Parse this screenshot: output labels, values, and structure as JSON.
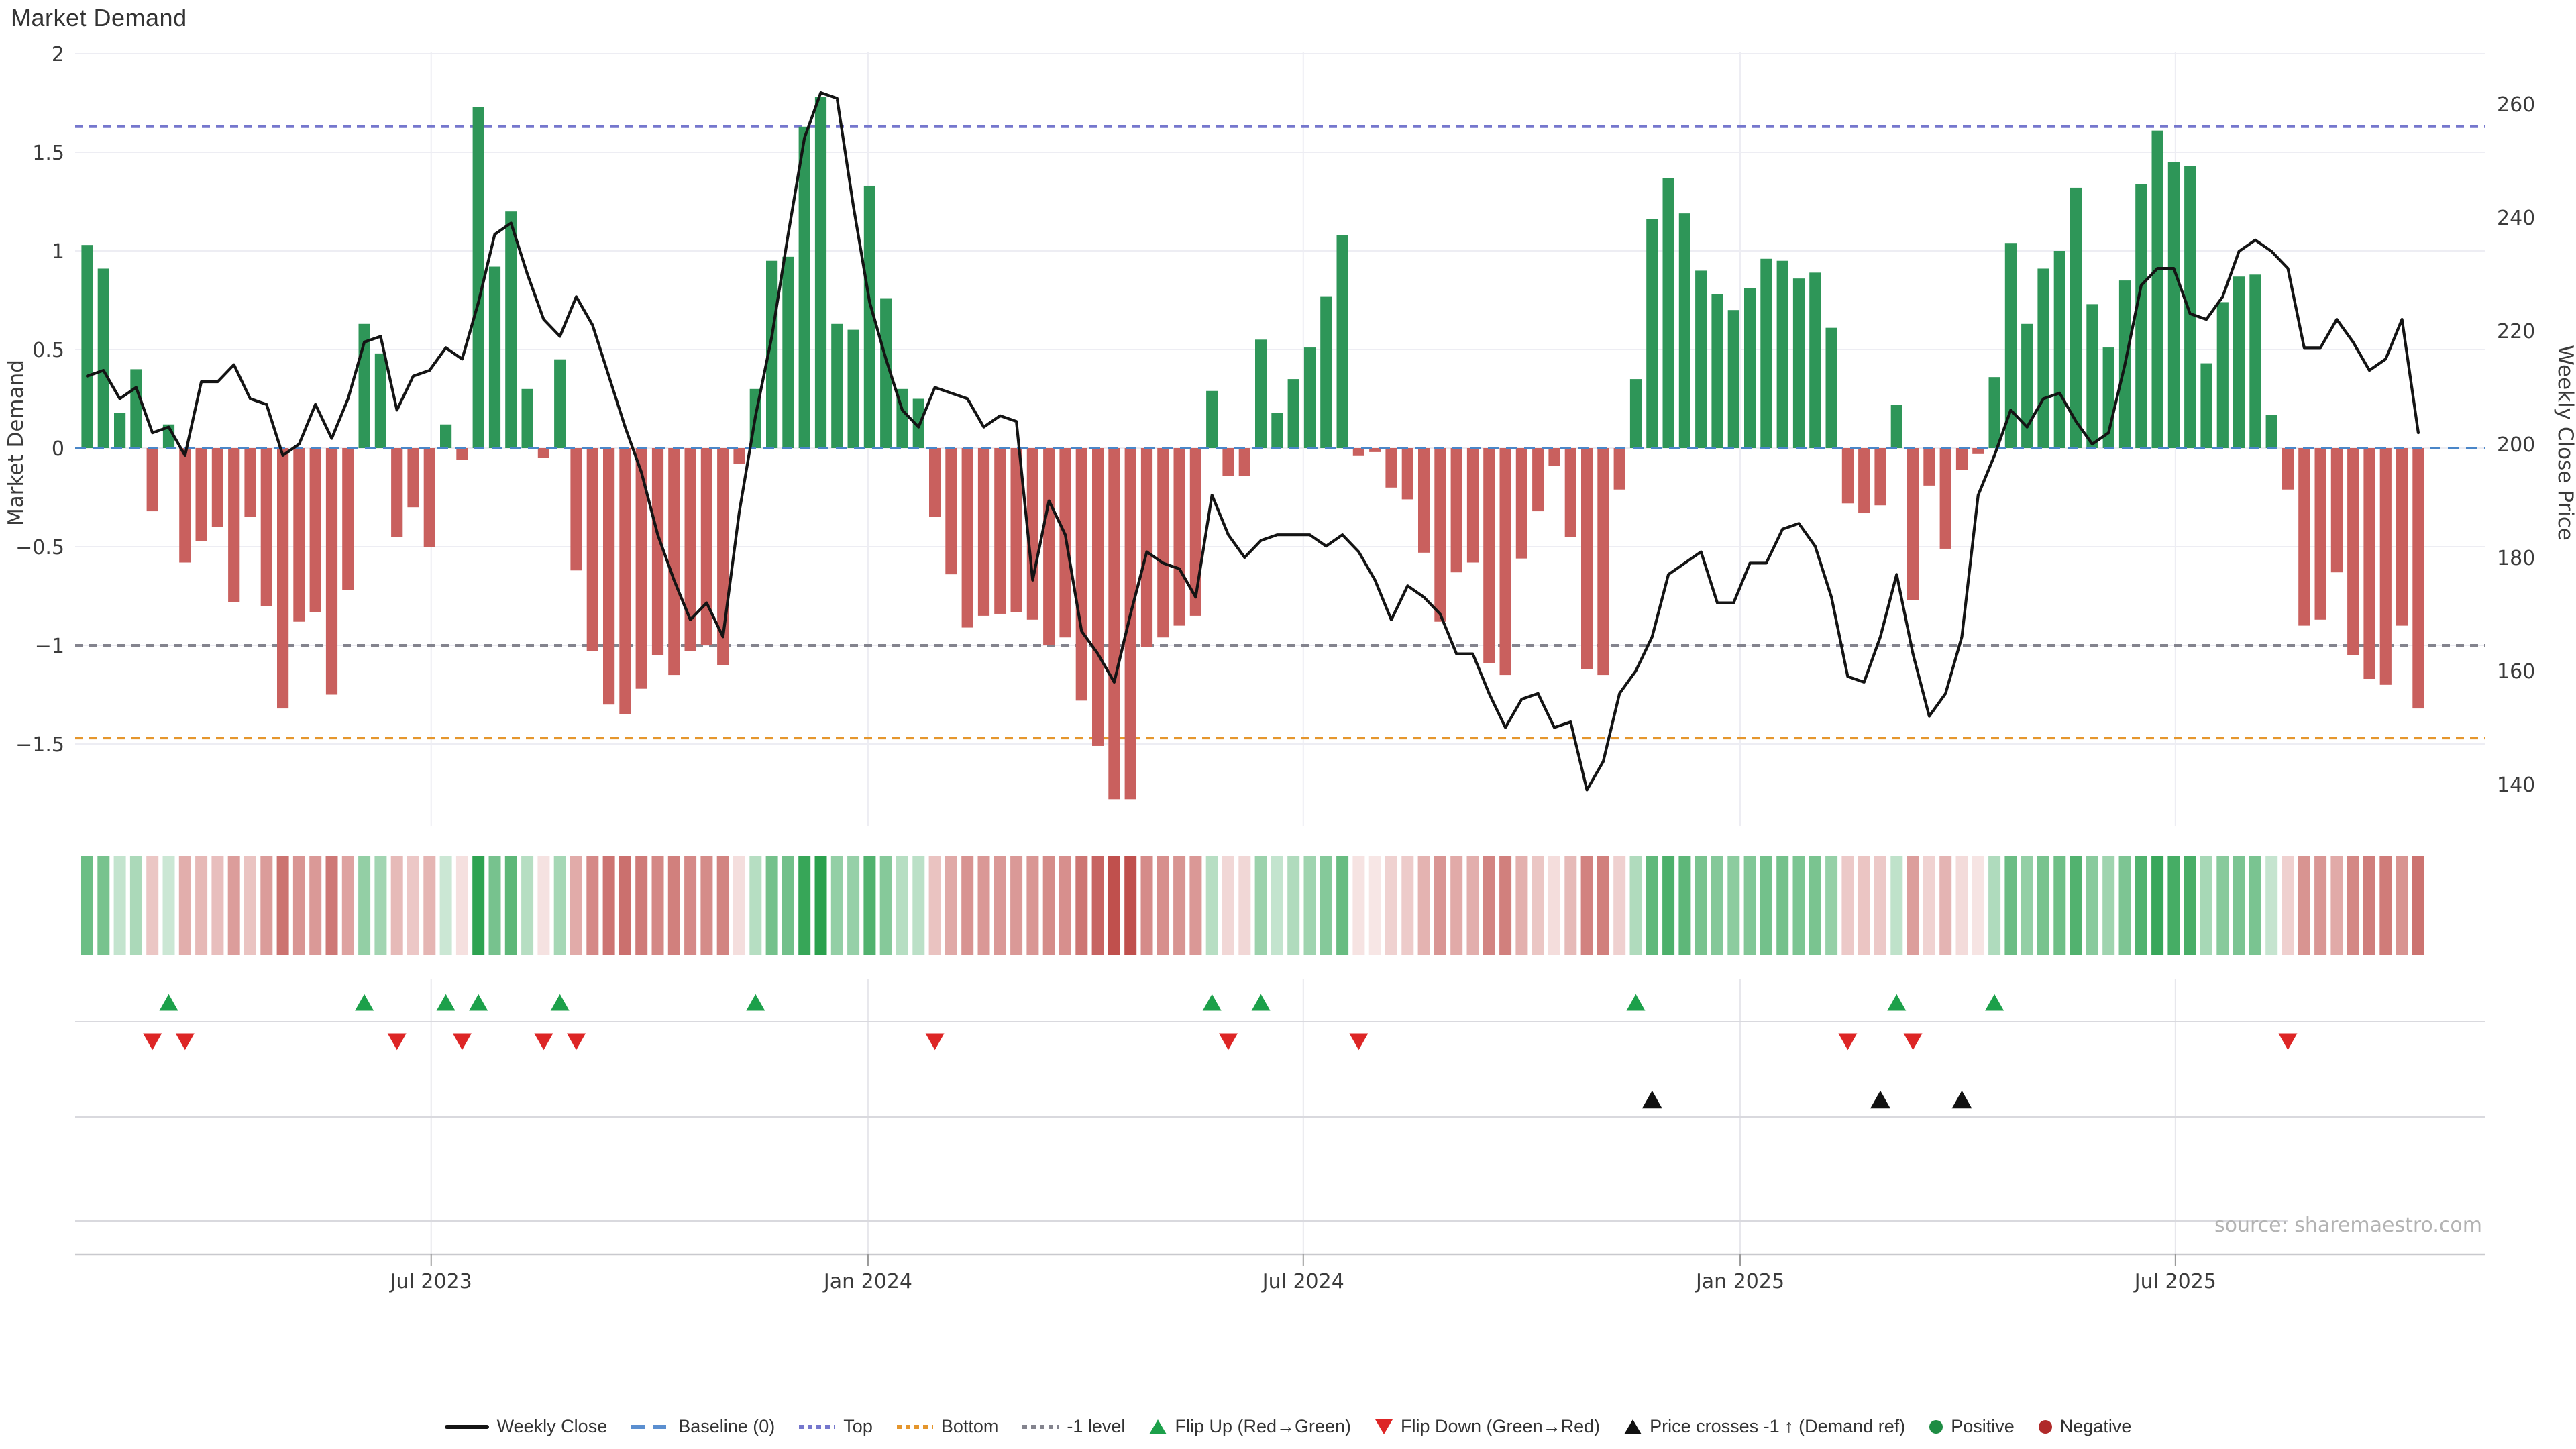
{
  "title": "Market Demand",
  "source": "source: sharemaestro.com",
  "y_left": {
    "label": "Market Demand",
    "ticks": [
      "2",
      "1.5",
      "1",
      "0.5",
      "0",
      "−0.5",
      "−1",
      "−1.5"
    ],
    "tick_values": [
      2,
      1.5,
      1,
      0.5,
      0,
      -0.5,
      -1,
      -1.5
    ]
  },
  "y_right": {
    "label": "Weekly Close Price",
    "ticks": [
      "260",
      "240",
      "220",
      "200",
      "180",
      "160",
      "140"
    ],
    "tick_values": [
      260,
      240,
      220,
      200,
      180,
      160,
      140
    ]
  },
  "x_axis": {
    "ticks": [
      {
        "label": "Jul 2023",
        "week": 21.1
      },
      {
        "label": "Jan 2024",
        "week": 47.9
      },
      {
        "label": "Jul 2024",
        "week": 74.6
      },
      {
        "label": "Jan 2025",
        "week": 101.4
      },
      {
        "label": "Jul 2025",
        "week": 128.1
      }
    ]
  },
  "ref_lines": {
    "baseline": {
      "label": "Baseline (0)",
      "value": 0,
      "color": "#4a86c8"
    },
    "top": {
      "label": "Top",
      "value": 1.63,
      "color": "#7577cd"
    },
    "bottom": {
      "label": "Bottom",
      "value": -1.47,
      "color": "#e5962d"
    },
    "minus1": {
      "label": "-1 level",
      "value": -1,
      "color": "#84848e"
    }
  },
  "colors": {
    "bar_positive": "#2e9658",
    "bar_negative": "#c9605e",
    "price_line": "#141414",
    "flip_up": "#1ca04a",
    "flip_down": "#dd2525",
    "price_cross": "#111111",
    "heat_pos_max": "#28a04c",
    "heat_pos_min": "#ddefe3",
    "heat_neg_max": "#bf4f4c",
    "heat_neg_min": "#f8e9e8",
    "grid": "#ededf3",
    "panel_grid": "#d9d9de",
    "axis_text": "#3b3b3b",
    "source_text": "#b3b3b3"
  },
  "legend": [
    {
      "label": "Weekly Close",
      "glyph": "line",
      "color": "#141414"
    },
    {
      "label": "Baseline (0)",
      "glyph": "dash",
      "color": "#5b8fd0"
    },
    {
      "label": "Top",
      "glyph": "dot",
      "color": "#7577cd"
    },
    {
      "label": "Bottom",
      "glyph": "dot",
      "color": "#e5962d"
    },
    {
      "label": "-1 level",
      "glyph": "dot",
      "color": "#84848e"
    },
    {
      "label": "Flip Up (Red→Green)",
      "glyph": "tri-up",
      "color": "#1ca04a"
    },
    {
      "label": "Flip Down (Green→Red)",
      "glyph": "tri-down",
      "color": "#dd2525"
    },
    {
      "label": "Price crosses -1 ↑ (Demand ref)",
      "glyph": "tri-up",
      "color": "#111111"
    },
    {
      "label": "Positive",
      "glyph": "circle",
      "color": "#1e8c43"
    },
    {
      "label": "Negative",
      "glyph": "circle",
      "color": "#b02a2a"
    }
  ],
  "chart_data": {
    "type": "combo",
    "subtype": [
      "bar",
      "line",
      "heatmap",
      "event-markers"
    ],
    "x_unit": "week_index",
    "n_points": 144,
    "x_range_labels": [
      "Jul 2023",
      "Jan 2024",
      "Jul 2024",
      "Jan 2025",
      "Jul 2025"
    ],
    "ylim_left": [
      -1.92,
      1.97
    ],
    "ylim_right": [
      132,
      268
    ],
    "grid": true,
    "legend_position": "bottom-center",
    "series": [
      {
        "name": "Market Demand",
        "type": "bar",
        "axis": "left",
        "positive_color": "#2e9658",
        "negative_color": "#c9605e",
        "values": [
          1.03,
          0.91,
          0.18,
          0.4,
          -0.32,
          0.12,
          -0.58,
          -0.47,
          -0.4,
          -0.78,
          -0.35,
          -0.8,
          -1.32,
          -0.88,
          -0.83,
          -1.25,
          -0.72,
          0.63,
          0.48,
          -0.45,
          -0.3,
          -0.5,
          0.12,
          -0.06,
          1.73,
          0.92,
          1.2,
          0.3,
          -0.05,
          0.45,
          -0.62,
          -1.03,
          -1.3,
          -1.35,
          -1.22,
          -1.05,
          -1.15,
          -1.03,
          -1.0,
          -1.1,
          -0.08,
          0.3,
          0.95,
          0.97,
          1.63,
          1.78,
          0.63,
          0.6,
          1.33,
          0.76,
          0.3,
          0.25,
          -0.35,
          -0.64,
          -0.91,
          -0.85,
          -0.84,
          -0.83,
          -0.87,
          -1.0,
          -0.96,
          -1.28,
          -1.51,
          -1.78,
          -1.78,
          -1.01,
          -0.96,
          -0.9,
          -0.85,
          0.29,
          -0.14,
          -0.14,
          0.55,
          0.18,
          0.35,
          0.51,
          0.77,
          1.08,
          -0.04,
          -0.02,
          -0.2,
          -0.26,
          -0.53,
          -0.88,
          -0.63,
          -0.58,
          -1.09,
          -1.15,
          -0.56,
          -0.32,
          -0.09,
          -0.45,
          -1.12,
          -1.15,
          -0.21,
          0.35,
          1.16,
          1.37,
          1.19,
          0.9,
          0.78,
          0.7,
          0.81,
          0.96,
          0.95,
          0.86,
          0.89,
          0.61,
          -0.28,
          -0.33,
          -0.29,
          0.22,
          -0.77,
          -0.19,
          -0.51,
          -0.11,
          -0.03,
          0.36,
          1.04,
          0.63,
          0.91,
          1.0,
          1.32,
          0.73,
          0.51,
          0.85,
          1.34,
          1.61,
          1.45,
          1.43,
          0.43,
          0.74,
          0.87,
          0.88,
          0.17,
          -0.21,
          -0.9,
          -0.87,
          -0.63,
          -1.05,
          -1.17,
          -1.2,
          -0.9,
          -1.32
        ]
      },
      {
        "name": "Weekly Close",
        "type": "line",
        "axis": "right",
        "color": "#141414",
        "values": [
          212,
          213,
          208,
          210,
          202,
          203,
          198,
          211,
          211,
          214,
          208,
          207,
          198,
          200,
          207,
          201,
          208,
          218,
          219,
          206,
          212,
          213,
          217,
          215,
          225,
          237,
          239,
          230,
          222,
          219,
          226,
          221,
          212,
          203,
          195,
          184,
          176,
          169,
          172,
          166,
          188,
          205,
          219,
          237,
          254,
          262,
          261,
          242,
          225,
          215,
          206,
          203,
          210,
          209,
          208,
          203,
          205,
          204,
          176,
          190,
          184,
          167,
          163,
          158,
          170,
          181,
          179,
          178,
          173,
          191,
          184,
          180,
          183,
          184,
          184,
          184,
          182,
          184,
          181,
          176,
          169,
          175,
          173,
          170,
          163,
          163,
          156,
          150,
          155,
          156,
          150,
          151,
          139,
          144,
          156,
          160,
          166,
          177,
          179,
          181,
          172,
          172,
          179,
          179,
          185,
          186,
          182,
          173,
          159,
          158,
          166,
          177,
          163,
          152,
          156,
          166,
          191,
          198,
          206,
          203,
          208,
          209,
          204,
          200,
          202,
          214,
          228,
          231,
          231,
          223,
          222,
          226,
          234,
          236,
          234,
          231,
          217,
          217,
          222,
          218,
          213,
          215,
          222,
          202
        ]
      }
    ],
    "markers": {
      "flip_up_weeks": [
        5,
        17,
        22,
        24,
        29,
        41,
        69,
        72,
        95,
        111,
        117
      ],
      "flip_down_weeks": [
        4,
        6,
        19,
        23,
        28,
        30,
        52,
        70,
        78,
        108,
        112,
        135
      ],
      "price_cross_weeks": [
        96,
        110,
        115
      ]
    },
    "heatmap": {
      "source_series": "Market Demand",
      "positive_color": "#28a04c",
      "negative_color": "#bf4f4c"
    }
  }
}
